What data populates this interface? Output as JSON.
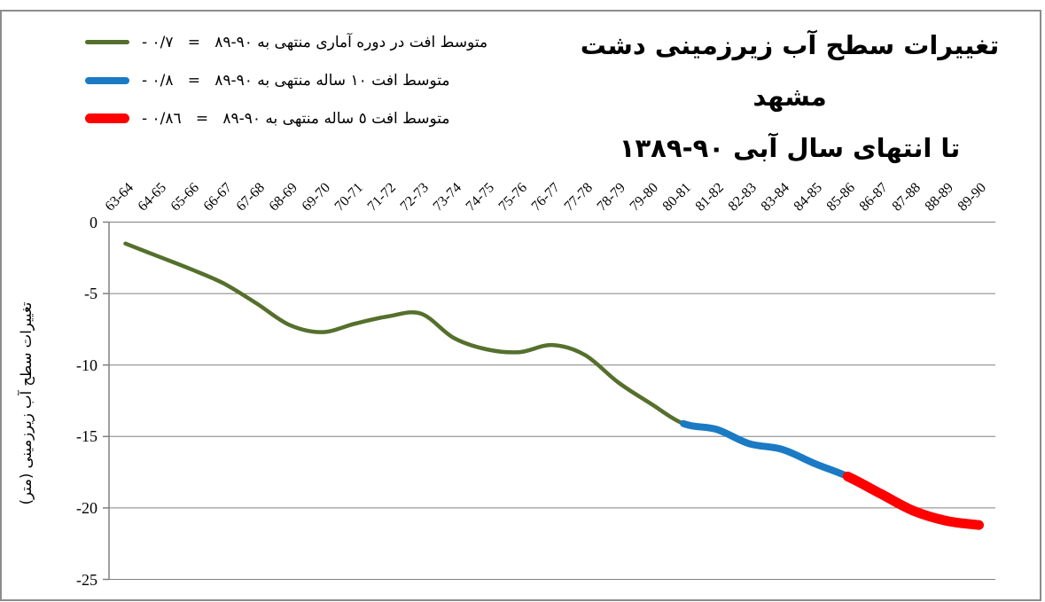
{
  "title": {
    "line1": "تغییرات سطح آب زیرزمینی دشت مشهد",
    "line2": "تا انتهای سال آبی ١٣٨٩‎-‎٩٠"
  },
  "legend": {
    "position": "top-left",
    "items": [
      {
        "label": "متوسط افت در دوره آماری منتهی به ٨٩‎-‎٩٠   =   ٠/٧ -",
        "color": "#55702C",
        "swatch_thickness": "thin"
      },
      {
        "label": "متوسط افت ١٠ ساله منتهی به ٨٩‎-‎٩٠   =   ٠/٨ -",
        "color": "#1B7AC4",
        "swatch_thickness": "medium"
      },
      {
        "label": "متوسط افت ٥ ساله منتهی به ٨٩‎-‎٩٠   =   ٠/٨٦ -",
        "color": "#FE0000",
        "swatch_thickness": "thick"
      }
    ]
  },
  "chart_data": {
    "type": "line",
    "title": "تغییرات سطح آب زیرزمینی دشت مشهد تا انتهای سال آبی ١٣٨٩-٩٠",
    "xlabel": "",
    "ylabel": "تغییرات سطح آب زیرزمینی (متر)",
    "ylim": [
      -25,
      0
    ],
    "ytick_step": 5,
    "grid": true,
    "x_labels_position": "top, rotated 45",
    "categories": [
      "63-64",
      "64-65",
      "65-66",
      "66-67",
      "67-68",
      "68-69",
      "69-70",
      "70-71",
      "71-72",
      "72-73",
      "73-74",
      "74-75",
      "75-76",
      "76-77",
      "77-78",
      "78-79",
      "79-80",
      "80-81",
      "81-82",
      "82-83",
      "83-84",
      "84-85",
      "85-86",
      "86-87",
      "87-88",
      "88-89",
      "89-90"
    ],
    "values": [
      -1.5,
      -2.4,
      -3.3,
      -4.3,
      -5.7,
      -7.2,
      -7.7,
      -7.1,
      -6.6,
      -6.4,
      -8.1,
      -8.9,
      -9.1,
      -8.6,
      -9.3,
      -11.2,
      -12.7,
      -14.1,
      -14.5,
      -15.5,
      -15.9,
      -16.9,
      -17.8,
      -19.0,
      -20.2,
      -20.9,
      -21.2
    ],
    "series": [
      {
        "id": "whole-period",
        "name": "متوسط افت در دوره آماری منتهی به ٨٩-٩٠",
        "avg_annual_drop": -0.7,
        "color": "#55702C",
        "width": 4.5,
        "range": [
          0,
          17
        ]
      },
      {
        "id": "ten-year",
        "name": "متوسط افت ١٠ ساله منتهی به ٨٩-٩٠",
        "avg_annual_drop": -0.8,
        "color": "#1B7AC4",
        "width": 8,
        "range": [
          17,
          22
        ]
      },
      {
        "id": "five-year",
        "name": "متوسط افت ٥ ساله منتهی به ٨٩-٩٠",
        "avg_annual_drop": -0.86,
        "color": "#FE0000",
        "width": 11,
        "range": [
          22,
          26
        ]
      }
    ],
    "colors": {
      "grid": "#808080",
      "axis": "#808080",
      "text": "#000000"
    }
  }
}
